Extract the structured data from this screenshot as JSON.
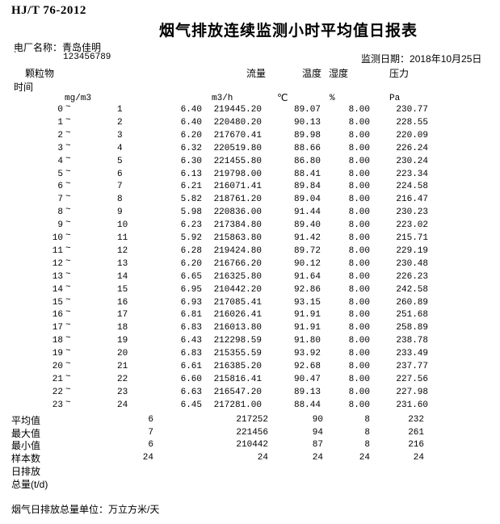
{
  "colors": {
    "background": "#ffffff",
    "text": "#000000"
  },
  "meta": {
    "standard": "HJ/T 76-2012",
    "title": "烟气排放连续监测小时平均值日报表",
    "plant_label": "电厂名称：",
    "plant_name": "青岛佳明",
    "plant_code_tick": "`",
    "plant_code": "123456789",
    "date_label": "监测日期：",
    "date_value": "2018年10月25日"
  },
  "table": {
    "tilde": "~",
    "headers": {
      "time": "时间",
      "particulate": "颗粒物",
      "flow": "流量",
      "temperature": "温度",
      "humidity": "湿度",
      "pressure": "压力"
    },
    "units": {
      "particulate": "mg/m3",
      "flow": "m3/h",
      "temperature": "℃",
      "humidity": "%",
      "pressure": "Pa"
    },
    "rows": [
      {
        "h1": "0",
        "h2": "1",
        "pm": "6.40",
        "flow": "219445.20",
        "temp": "89.07",
        "hum": "8.00",
        "press": "230.77"
      },
      {
        "h1": "1",
        "h2": "2",
        "pm": "6.40",
        "flow": "220480.20",
        "temp": "90.13",
        "hum": "8.00",
        "press": "228.55"
      },
      {
        "h1": "2",
        "h2": "3",
        "pm": "6.20",
        "flow": "217670.41",
        "temp": "89.98",
        "hum": "8.00",
        "press": "220.09"
      },
      {
        "h1": "3",
        "h2": "4",
        "pm": "6.32",
        "flow": "220519.80",
        "temp": "88.66",
        "hum": "8.00",
        "press": "226.24"
      },
      {
        "h1": "4",
        "h2": "5",
        "pm": "6.30",
        "flow": "221455.80",
        "temp": "86.80",
        "hum": "8.00",
        "press": "230.24"
      },
      {
        "h1": "5",
        "h2": "6",
        "pm": "6.13",
        "flow": "219798.00",
        "temp": "88.41",
        "hum": "8.00",
        "press": "223.34"
      },
      {
        "h1": "6",
        "h2": "7",
        "pm": "6.21",
        "flow": "216071.41",
        "temp": "89.84",
        "hum": "8.00",
        "press": "224.58"
      },
      {
        "h1": "7",
        "h2": "8",
        "pm": "5.82",
        "flow": "218761.20",
        "temp": "89.04",
        "hum": "8.00",
        "press": "216.47"
      },
      {
        "h1": "8",
        "h2": "9",
        "pm": "5.98",
        "flow": "220836.00",
        "temp": "91.44",
        "hum": "8.00",
        "press": "230.23"
      },
      {
        "h1": "9",
        "h2": "10",
        "pm": "6.23",
        "flow": "217384.80",
        "temp": "89.40",
        "hum": "8.00",
        "press": "223.02"
      },
      {
        "h1": "10",
        "h2": "11",
        "pm": "5.92",
        "flow": "215863.80",
        "temp": "91.42",
        "hum": "8.00",
        "press": "215.71"
      },
      {
        "h1": "11",
        "h2": "12",
        "pm": "6.28",
        "flow": "219424.80",
        "temp": "89.72",
        "hum": "8.00",
        "press": "229.19"
      },
      {
        "h1": "12",
        "h2": "13",
        "pm": "6.20",
        "flow": "216766.20",
        "temp": "90.12",
        "hum": "8.00",
        "press": "230.48"
      },
      {
        "h1": "13",
        "h2": "14",
        "pm": "6.65",
        "flow": "216325.80",
        "temp": "91.64",
        "hum": "8.00",
        "press": "226.23"
      },
      {
        "h1": "14",
        "h2": "15",
        "pm": "6.95",
        "flow": "210442.20",
        "temp": "92.86",
        "hum": "8.00",
        "press": "242.58"
      },
      {
        "h1": "15",
        "h2": "16",
        "pm": "6.93",
        "flow": "217085.41",
        "temp": "93.15",
        "hum": "8.00",
        "press": "260.89"
      },
      {
        "h1": "16",
        "h2": "17",
        "pm": "6.81",
        "flow": "216026.41",
        "temp": "91.91",
        "hum": "8.00",
        "press": "251.68"
      },
      {
        "h1": "17",
        "h2": "18",
        "pm": "6.83",
        "flow": "216013.80",
        "temp": "91.91",
        "hum": "8.00",
        "press": "258.89"
      },
      {
        "h1": "18",
        "h2": "19",
        "pm": "6.43",
        "flow": "212298.59",
        "temp": "91.80",
        "hum": "8.00",
        "press": "238.78"
      },
      {
        "h1": "19",
        "h2": "20",
        "pm": "6.83",
        "flow": "215355.59",
        "temp": "93.92",
        "hum": "8.00",
        "press": "233.49"
      },
      {
        "h1": "20",
        "h2": "21",
        "pm": "6.61",
        "flow": "216385.20",
        "temp": "92.68",
        "hum": "8.00",
        "press": "237.77"
      },
      {
        "h1": "21",
        "h2": "22",
        "pm": "6.60",
        "flow": "215816.41",
        "temp": "90.47",
        "hum": "8.00",
        "press": "227.56"
      },
      {
        "h1": "22",
        "h2": "23",
        "pm": "6.63",
        "flow": "216547.20",
        "temp": "89.13",
        "hum": "8.00",
        "press": "227.98"
      },
      {
        "h1": "23",
        "h2": "24",
        "pm": "6.45",
        "flow": "217281.00",
        "temp": "88.44",
        "hum": "8.00",
        "press": "231.60"
      }
    ],
    "summary": [
      {
        "label": "平均值",
        "pm": "6",
        "flow": "217252",
        "temp": "90",
        "hum": "8",
        "press": "232"
      },
      {
        "label": "最大值",
        "pm": "7",
        "flow": "221456",
        "temp": "94",
        "hum": "8",
        "press": "261"
      },
      {
        "label": "最小值",
        "pm": "6",
        "flow": "210442",
        "temp": "87",
        "hum": "8",
        "press": "216"
      },
      {
        "label": "样本数",
        "pm": "24",
        "flow": "24",
        "temp": "24",
        "hum": "24",
        "press": "24"
      },
      {
        "label": "日排放",
        "pm": "",
        "flow": "",
        "temp": "",
        "hum": "",
        "press": ""
      },
      {
        "label": "总量(t/d)",
        "pm": "",
        "flow": "",
        "temp": "",
        "hum": "",
        "press": ""
      }
    ],
    "footnote": "烟气日排放总量单位：万立方米/天"
  }
}
